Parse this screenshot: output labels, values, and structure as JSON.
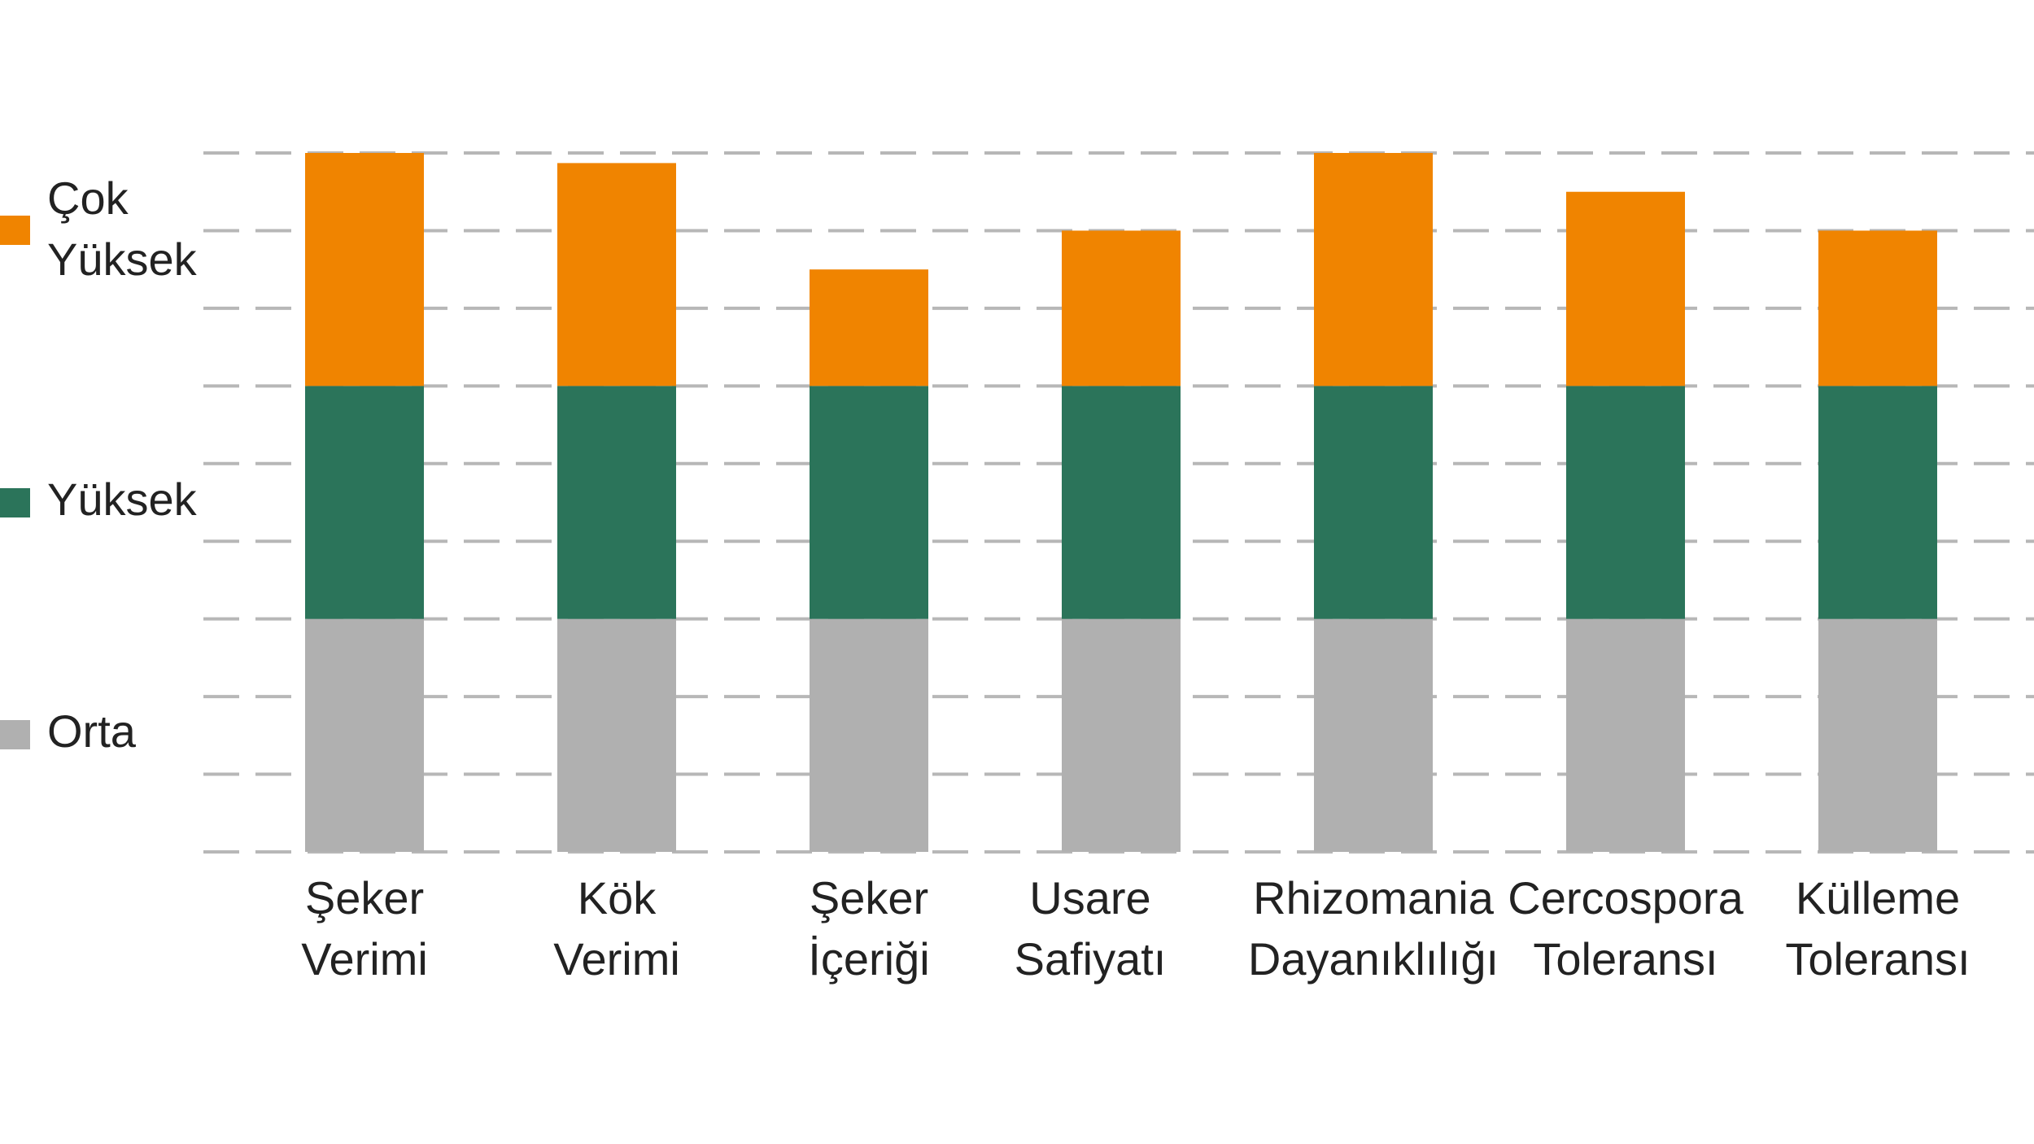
{
  "chart_data": {
    "type": "bar",
    "stacked": true,
    "categories": [
      [
        "Şeker",
        "Verimi"
      ],
      [
        "Kök",
        "Verimi"
      ],
      [
        "Şeker",
        "İçeriği"
      ],
      [
        "Usare",
        "Safiyatı"
      ],
      [
        "Rhizomania",
        "Dayanıklılığı"
      ],
      [
        "Cercospora",
        "Toleransı"
      ],
      [
        "Külleme",
        "Toleransı"
      ]
    ],
    "series": [
      {
        "name": "Orta",
        "color": "#b0b0b0",
        "values": [
          3,
          3,
          3,
          3,
          3,
          3,
          3
        ]
      },
      {
        "name": "Yüksek",
        "color": "#2b745a",
        "values": [
          3,
          3,
          3,
          3,
          3,
          3,
          3
        ]
      },
      {
        "name": "Çok Yüksek",
        "legend_lines": [
          "Çok",
          "Yüksek"
        ],
        "color": "#f08400",
        "values": [
          3,
          2.87,
          1.5,
          2,
          3,
          2.5,
          2
        ]
      }
    ],
    "ylim": [
      0,
      9
    ],
    "grid": true,
    "grid_style": "dashed",
    "legend_position": "left"
  }
}
